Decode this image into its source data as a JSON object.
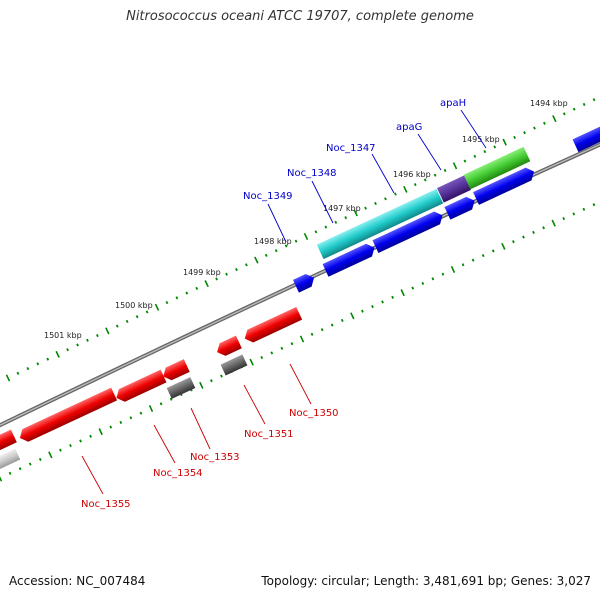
{
  "title": "Nitrosococcus oceani ATCC 19707, complete genome",
  "footer": {
    "accession": "Accession: NC_007484",
    "summary": "Topology: circular; Length: 3,481,691 bp; Genes: 3,027"
  },
  "scale_labels": [
    "1494 kbp",
    "1495 kbp",
    "1496 kbp",
    "1497 kbp",
    "1498 kbp",
    "1499 kbp",
    "1500 kbp",
    "1501 kbp"
  ],
  "genes_forward": [
    {
      "name": "apaH",
      "color": "#0000cc"
    },
    {
      "name": "apaG",
      "color": "#0000cc"
    },
    {
      "name": "Noc_1347",
      "color": "#0000cc"
    },
    {
      "name": "Noc_1348",
      "color": "#0000cc"
    },
    {
      "name": "Noc_1349",
      "color": "#0000cc"
    }
  ],
  "genes_reverse": [
    {
      "name": "Noc_1350",
      "color": "#cc0000"
    },
    {
      "name": "Noc_1351",
      "color": "#cc0000"
    },
    {
      "name": "Noc_1353",
      "color": "#cc0000"
    },
    {
      "name": "Noc_1354",
      "color": "#cc0000"
    },
    {
      "name": "Noc_1355",
      "color": "#cc0000"
    }
  ],
  "colors": {
    "forward_cds": "#0000ee",
    "reverse_cds": "#ee0000",
    "pseudo_gene": "#666666",
    "light_gene": "#cccccc",
    "feature_cyan": "#22cccc",
    "feature_green": "#44cc33",
    "feature_purple": "#553399",
    "backbone": "#888888",
    "tick": "#008800"
  }
}
